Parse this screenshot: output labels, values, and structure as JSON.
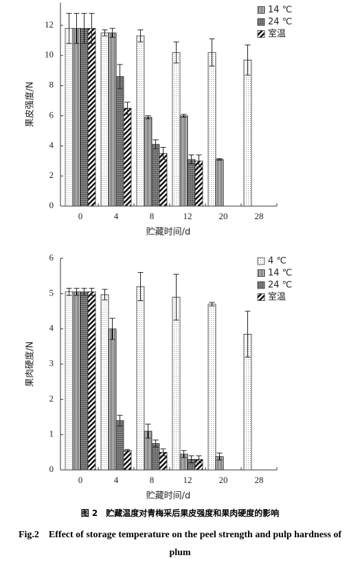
{
  "chart_data": [
    {
      "type": "bar",
      "y_label": "果皮强度/N",
      "x_label": "贮藏时间/d",
      "categories": [
        "0",
        "4",
        "8",
        "12",
        "20",
        "28"
      ],
      "ylim": [
        0,
        13.5
      ],
      "yticks": [
        0,
        2,
        4,
        6,
        8,
        10,
        12
      ],
      "legend": "upper right",
      "series": [
        {
          "pattern": "dots",
          "values": [
            11.8,
            11.5,
            11.3,
            10.2,
            10.2,
            9.7
          ],
          "errors": [
            1.0,
            0.2,
            0.4,
            0.7,
            0.9,
            1.0
          ]
        },
        {
          "name": "14 ℃",
          "pattern": "vlines",
          "values": [
            11.8,
            11.5,
            5.9,
            6.0,
            3.1,
            null
          ],
          "errors": [
            1.0,
            0.3,
            0.1,
            0.1,
            0.05,
            null
          ]
        },
        {
          "name": "24 ℃",
          "pattern": "cross",
          "values": [
            11.8,
            8.6,
            4.1,
            3.1,
            null,
            null
          ],
          "errors": [
            1.0,
            0.8,
            0.3,
            0.3,
            null,
            null
          ]
        },
        {
          "name": "室温",
          "pattern": "diag",
          "values": [
            11.8,
            6.5,
            3.5,
            3.0,
            null,
            null
          ],
          "errors": [
            1.0,
            0.4,
            0.4,
            0.4,
            null,
            null
          ]
        }
      ]
    },
    {
      "type": "bar",
      "y_label": "果肉硬度/N",
      "x_label": "贮藏时间/d",
      "categories": [
        "0",
        "4",
        "8",
        "12",
        "20",
        "28"
      ],
      "ylim": [
        0,
        6
      ],
      "yticks": [
        0,
        1,
        2,
        3,
        4,
        5,
        6
      ],
      "legend": "upper right",
      "series": [
        {
          "name": "4 ℃",
          "pattern": "dots",
          "values": [
            5.05,
            4.97,
            5.2,
            4.9,
            4.7,
            3.85
          ],
          "errors": [
            0.1,
            0.15,
            0.4,
            0.65,
            0.05,
            0.65
          ]
        },
        {
          "name": "14 ℃",
          "pattern": "vlines",
          "values": [
            5.05,
            4.0,
            1.1,
            0.45,
            0.38,
            null
          ],
          "errors": [
            0.1,
            0.3,
            0.2,
            0.1,
            0.1,
            null
          ]
        },
        {
          "name": "24 ℃",
          "pattern": "cross",
          "values": [
            5.05,
            1.4,
            0.75,
            0.3,
            null,
            null
          ],
          "errors": [
            0.1,
            0.15,
            0.1,
            0.1,
            null,
            null
          ]
        },
        {
          "name": "室温",
          "pattern": "diag",
          "values": [
            5.05,
            0.55,
            0.5,
            0.3,
            null,
            null
          ],
          "errors": [
            0.1,
            0.03,
            0.1,
            0.1,
            null,
            null
          ]
        }
      ]
    }
  ],
  "caption": {
    "cn": "图 2　贮藏温度对青梅采后果皮强度和果肉硬度的影响",
    "en": "Fig.2　Effect of storage temperature on the peel strength and pulp hardness of plum"
  }
}
